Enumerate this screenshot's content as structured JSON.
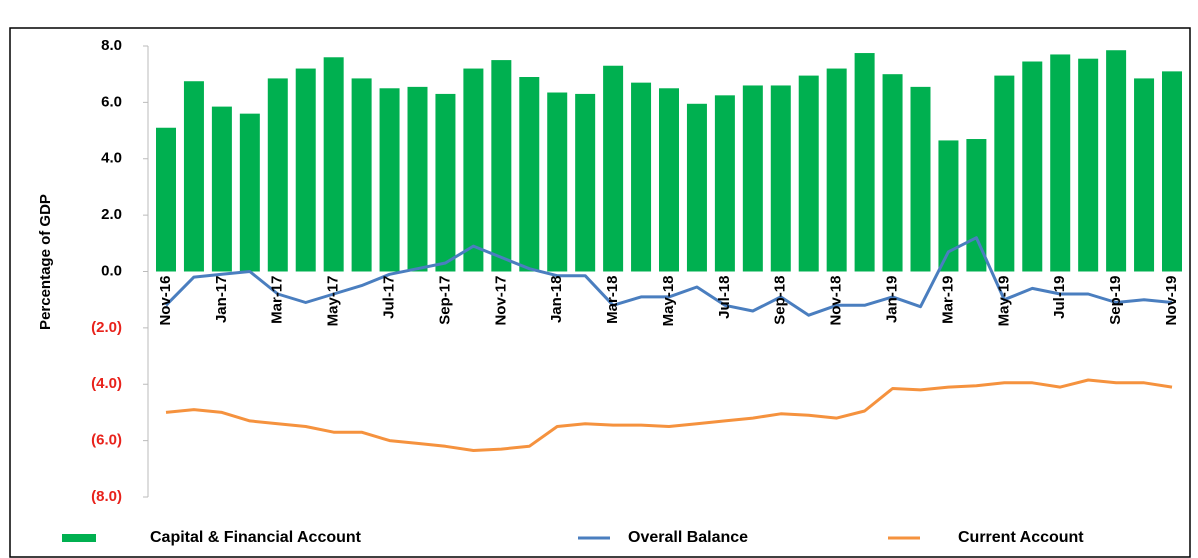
{
  "chart_data": {
    "type": "bar-line",
    "y_label": "Percentage of GDP",
    "categories": [
      "Nov-16",
      null,
      "Jan-17",
      null,
      "Mar-17",
      null,
      "May-17",
      null,
      "Jul-17",
      null,
      "Sep-17",
      null,
      "Nov-17",
      null,
      "Jan-18",
      null,
      "Mar-18",
      null,
      "May-18",
      null,
      "Jul-18",
      null,
      "Sep-18",
      null,
      "Nov-18",
      null,
      "Jan-19",
      null,
      "Mar-19",
      null,
      "May-19",
      null,
      "Jul-19",
      null,
      "Sep-19",
      null,
      "Nov-19"
    ],
    "series": [
      {
        "name": "Capital & Financial Account",
        "type": "bar",
        "color": "#00b050",
        "values": [
          5.1,
          6.75,
          5.85,
          5.6,
          6.85,
          7.2,
          7.6,
          6.85,
          6.5,
          6.55,
          6.3,
          7.2,
          7.5,
          6.9,
          6.35,
          6.3,
          7.3,
          6.7,
          6.5,
          5.95,
          6.25,
          6.6,
          6.6,
          6.95,
          7.2,
          7.75,
          7.0,
          6.55,
          4.65,
          4.7,
          6.95,
          7.45,
          7.7,
          7.55,
          7.85,
          6.85,
          7.1
        ]
      },
      {
        "name": "Overall Balance",
        "type": "line",
        "color": "#4a7ebf",
        "values": [
          -1.2,
          -0.2,
          -0.1,
          0.0,
          -0.8,
          -1.1,
          -0.8,
          -0.5,
          -0.1,
          0.1,
          0.3,
          0.9,
          0.5,
          0.1,
          -0.15,
          -0.15,
          -1.2,
          -0.9,
          -0.9,
          -0.55,
          -1.2,
          -1.4,
          -0.9,
          -1.55,
          -1.2,
          -1.2,
          -0.9,
          -1.25,
          0.7,
          1.2,
          -1.0,
          -0.6,
          -0.8,
          -0.8,
          -1.1,
          -1.0,
          -1.1
        ]
      },
      {
        "name": "Current Account",
        "type": "line",
        "color": "#f5923e",
        "values": [
          -5.0,
          -4.9,
          -5.0,
          -5.3,
          -5.4,
          -5.5,
          -5.7,
          -5.7,
          -6.0,
          -6.1,
          -6.2,
          -6.35,
          -6.3,
          -6.2,
          -5.5,
          -5.4,
          -5.45,
          -5.45,
          -5.5,
          -5.4,
          -5.3,
          -5.2,
          -5.05,
          -5.1,
          -5.2,
          -4.95,
          -4.15,
          -4.2,
          -4.1,
          -4.05,
          -3.95,
          -3.95,
          -4.1,
          -3.85,
          -3.95,
          -3.95,
          -4.1
        ]
      }
    ],
    "ylim": [
      -8,
      8
    ],
    "yticks": [
      {
        "value": 8,
        "label": "8.0"
      },
      {
        "value": 6,
        "label": "6.0"
      },
      {
        "value": 4,
        "label": "4.0"
      },
      {
        "value": 2,
        "label": "2.0"
      },
      {
        "value": 0,
        "label": "0.0"
      },
      {
        "value": -2,
        "label": "(2.0)"
      },
      {
        "value": -4,
        "label": "(4.0)"
      },
      {
        "value": -6,
        "label": "(6.0)"
      },
      {
        "value": -8,
        "label": "(8.0)"
      }
    ],
    "negative_tick_color": "#e8221b",
    "legend": "bottom"
  }
}
